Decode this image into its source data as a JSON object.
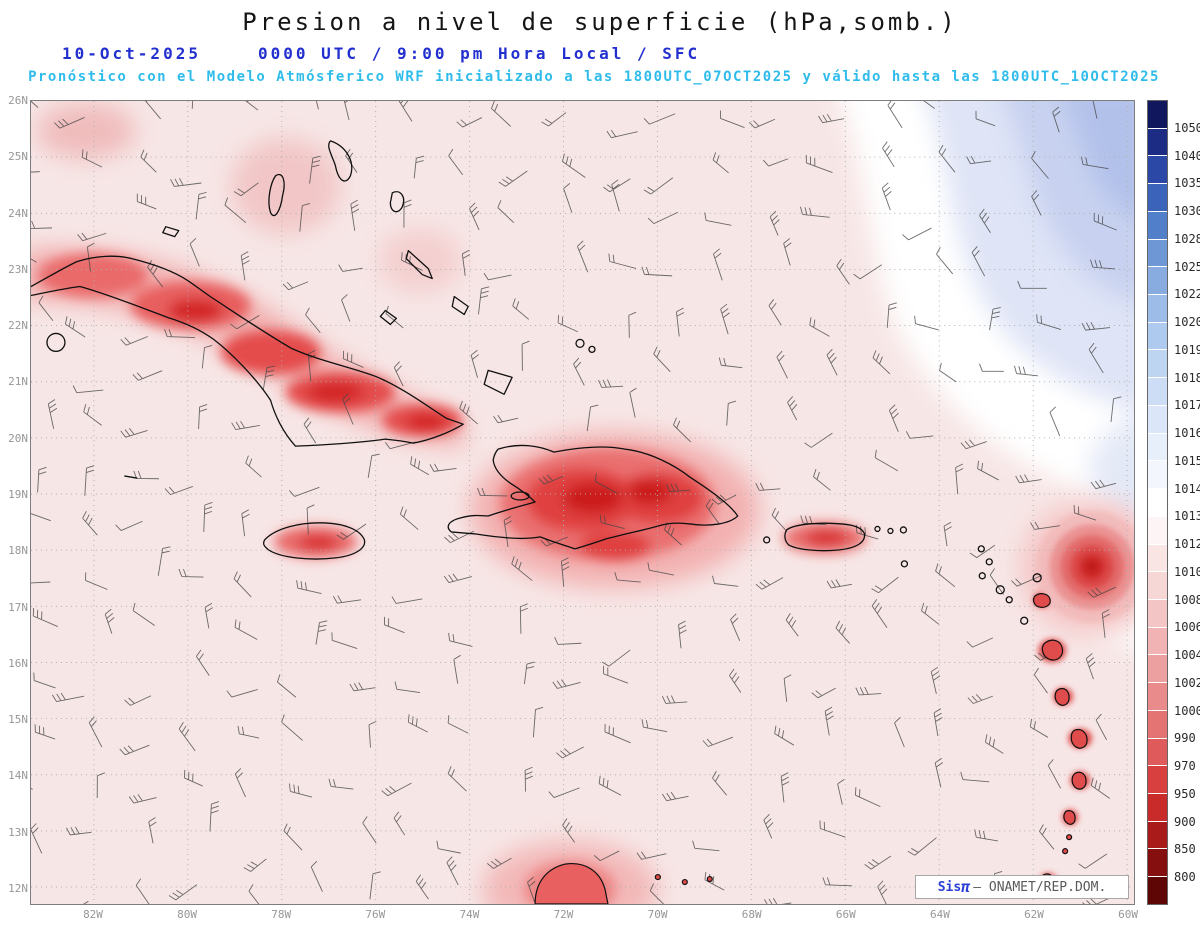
{
  "header": {
    "title": "Presion a nivel de superficie (hPa,somb.)",
    "date": "10-Oct-2025",
    "valid": "0000 UTC / 9:00 pm Hora Local / SFC",
    "forecast": "Pronóstico con el Modelo Atmósferico WRF inicializado a las 1800UTC_07OCT2025 y válido hasta las  1800UTC_10OCT2025"
  },
  "map": {
    "lat_labels": [
      "26N",
      "25N",
      "24N",
      "23N",
      "22N",
      "21N",
      "20N",
      "19N",
      "18N",
      "17N",
      "16N",
      "15N",
      "14N",
      "13N",
      "12N"
    ],
    "lon_labels": [
      "82W",
      "80W",
      "78W",
      "76W",
      "74W",
      "72W",
      "70W",
      "68W",
      "66W",
      "64W",
      "62W",
      "60W"
    ],
    "credit_brand": "Sis",
    "credit_pi": "π",
    "credit_org": "— ONAMET/REP.DOM."
  },
  "colorbar": {
    "unit": "hPa",
    "boundaries": [
      "1050",
      "1040",
      "1035",
      "1030",
      "1028",
      "1025",
      "1022",
      "1020",
      "1019",
      "1018",
      "1017",
      "1016",
      "1015",
      "1014",
      "1013",
      "1012",
      "1010",
      "1008",
      "1006",
      "1004",
      "1002",
      "1000",
      "990",
      "970",
      "950",
      "900",
      "850",
      "800"
    ],
    "colors": [
      "#10175c",
      "#1c2b84",
      "#2c48a6",
      "#3c63ba",
      "#527fc9",
      "#6e97d6",
      "#88abe0",
      "#9dbce8",
      "#aecaee",
      "#bed5f2",
      "#cdddf5",
      "#dbe6f8",
      "#e7effb",
      "#f3f7fd",
      "#ffffff",
      "#fdf5f5",
      "#fae5e5",
      "#f7d6d6",
      "#f4c5c5",
      "#f1b3b3",
      "#eda0a0",
      "#e98b8b",
      "#e47474",
      "#df5a5a",
      "#d84040",
      "#c92b2b",
      "#a91a1a",
      "#850e0e",
      "#5e0505"
    ]
  }
}
